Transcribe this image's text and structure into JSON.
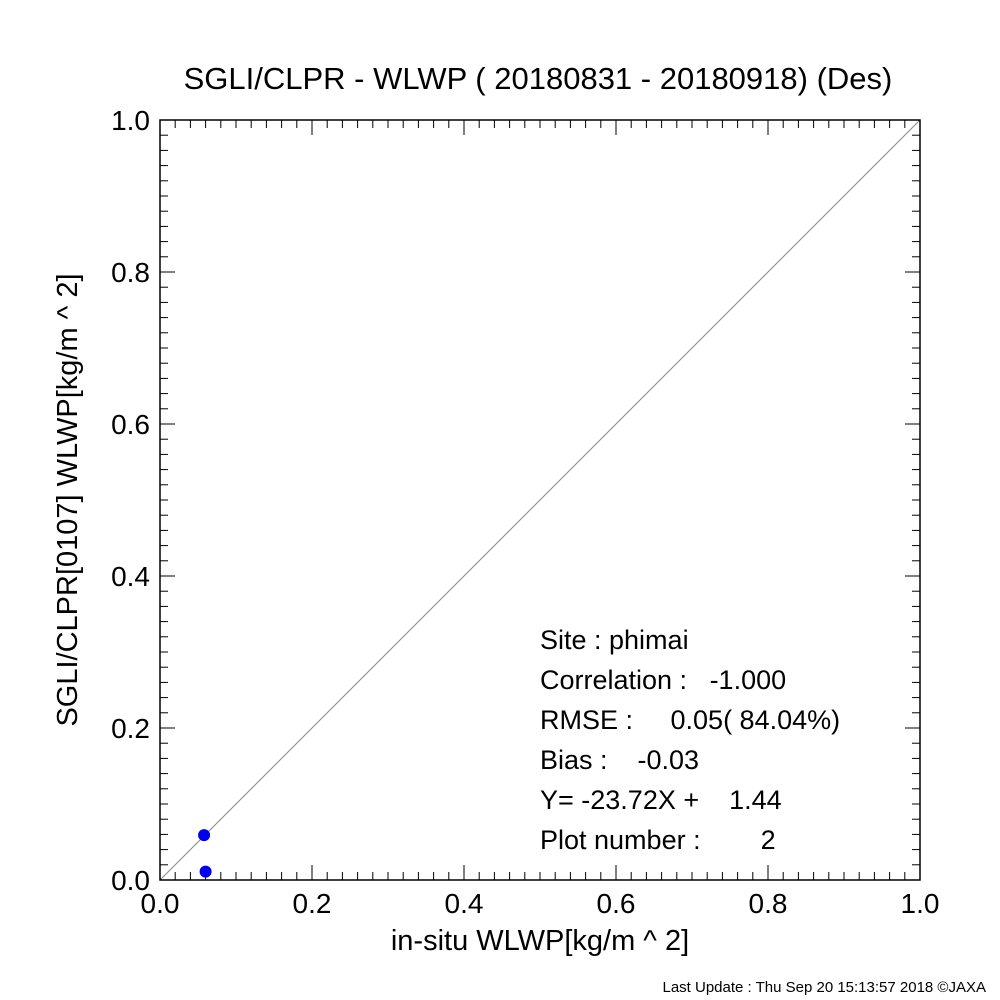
{
  "chart_data": {
    "type": "scatter",
    "title": "SGLI/CLPR - WLWP ( 20180831 - 20180918) (Des)",
    "xlabel": "in-situ WLWP[kg/m ^ 2]",
    "ylabel": "SGLI/CLPR[0107]    WLWP[kg/m ^ 2]",
    "xlim": [
      0,
      1
    ],
    "ylim": [
      0,
      1
    ],
    "xticks": [
      "0.0",
      "0.2",
      "0.4",
      "0.6",
      "0.8",
      "1.0"
    ],
    "yticks": [
      "0.0",
      "0.2",
      "0.4",
      "0.6",
      "0.8",
      "1.0"
    ],
    "reference_line": {
      "type": "1:1",
      "color": "#888888"
    },
    "series": [
      {
        "points": [
          {
            "x": 0.058,
            "y": 0.059
          },
          {
            "x": 0.06,
            "y": 0.011
          }
        ],
        "color": "#0000ee"
      }
    ],
    "stats": [
      "Site : phimai",
      "Correlation :   -1.000",
      "RMSE :     0.05( 84.04%)",
      "Bias :    -0.03",
      "Y= -23.72X +    1.44",
      "Plot number :        2"
    ],
    "grid": false
  },
  "footer": "Last Update : Thu Sep 20 15:13:57 2018  ©JAXA"
}
